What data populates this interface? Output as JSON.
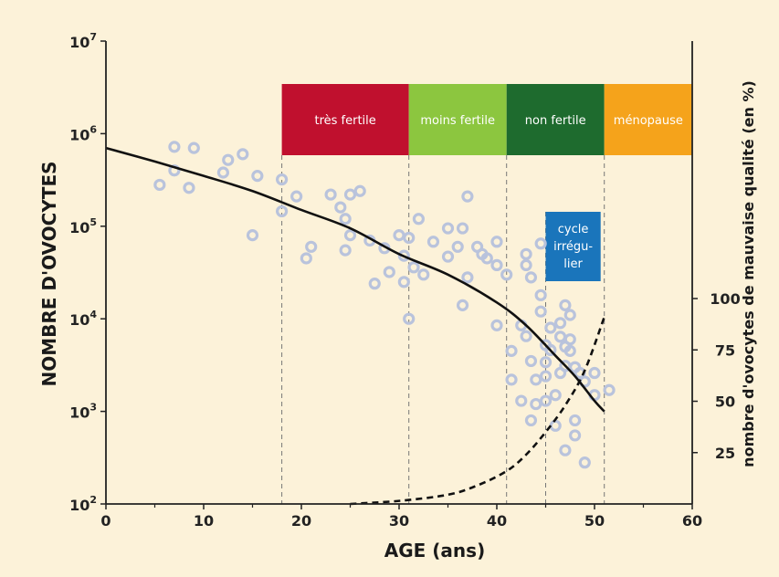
{
  "chart_data": {
    "type": "scatter",
    "xlabel": "AGE (ans)",
    "ylabel": "NOMBRE D'OVOCYTES",
    "y2label": "nombre d'ovocytes de mauvaise qualité (en %)",
    "xlim": [
      0,
      60
    ],
    "ylim": [
      100,
      10000000
    ],
    "yscale": "log",
    "x_ticks": [
      "0",
      "10",
      "20",
      "30",
      "40",
      "50",
      "60"
    ],
    "y_ticks": [
      {
        "base": "10",
        "exp": "2",
        "value": 100
      },
      {
        "base": "10",
        "exp": "3",
        "value": 1000
      },
      {
        "base": "10",
        "exp": "4",
        "value": 10000
      },
      {
        "base": "10",
        "exp": "5",
        "value": 100000
      },
      {
        "base": "10",
        "exp": "6",
        "value": 1000000
      },
      {
        "base": "10",
        "exp": "7",
        "value": 10000000
      }
    ],
    "y2_ticks": [
      "25",
      "50",
      "75",
      "100"
    ],
    "y2lim": [
      0,
      100
    ],
    "grid": false,
    "background": "#fcf2d9",
    "phases": [
      {
        "label": "très fertile",
        "from": 18,
        "to": 31,
        "color": "#c0102e"
      },
      {
        "label": "moins fertile",
        "from": 31,
        "to": 41,
        "color": "#8cc63f"
      },
      {
        "label": "non fertile",
        "from": 41,
        "to": 51,
        "color": "#1e6b2e"
      },
      {
        "label": "ménopause",
        "from": 51,
        "to": 60,
        "color": "#f5a31b"
      }
    ],
    "annotation": {
      "lines": [
        "cycle",
        "irrégu-",
        "lier"
      ],
      "x_from": 45,
      "x_to": 51,
      "color": "#1a75bb"
    },
    "series": [
      {
        "style": "solid-curve",
        "color": "#111111",
        "points": [
          [
            0,
            700000
          ],
          [
            5,
            500000
          ],
          [
            10,
            350000
          ],
          [
            15,
            240000
          ],
          [
            20,
            150000
          ],
          [
            25,
            95000
          ],
          [
            30,
            50000
          ],
          [
            35,
            30000
          ],
          [
            40,
            15000
          ],
          [
            43,
            8500
          ],
          [
            46,
            4000
          ],
          [
            48,
            2400
          ],
          [
            50,
            1300
          ],
          [
            51,
            1000
          ]
        ]
      },
      {
        "style": "dashed-curve",
        "axis": "y2",
        "color": "#111111",
        "points": [
          [
            25,
            0
          ],
          [
            30,
            1.5
          ],
          [
            35,
            4.5
          ],
          [
            38,
            9
          ],
          [
            41,
            16
          ],
          [
            43,
            24
          ],
          [
            45,
            35
          ],
          [
            47,
            48
          ],
          [
            49,
            65
          ],
          [
            51,
            91
          ]
        ]
      },
      {
        "style": "dots",
        "color": "#b9c3dc",
        "points": [
          [
            5.5,
            280000
          ],
          [
            7,
            400000
          ],
          [
            7,
            720000
          ],
          [
            8.5,
            260000
          ],
          [
            9,
            700000
          ],
          [
            12,
            380000
          ],
          [
            12.5,
            520000
          ],
          [
            14,
            600000
          ],
          [
            15,
            80000
          ],
          [
            15.5,
            350000
          ],
          [
            18,
            145000
          ],
          [
            18,
            320000
          ],
          [
            19.5,
            210000
          ],
          [
            20.5,
            45000
          ],
          [
            21,
            60000
          ],
          [
            23,
            220000
          ],
          [
            24,
            160000
          ],
          [
            24.5,
            120000
          ],
          [
            24.5,
            55000
          ],
          [
            25,
            80000
          ],
          [
            25,
            220000
          ],
          [
            26,
            240000
          ],
          [
            27,
            70000
          ],
          [
            27.5,
            24000
          ],
          [
            28.5,
            58000
          ],
          [
            29,
            32000
          ],
          [
            30,
            80000
          ],
          [
            30.5,
            25000
          ],
          [
            30.5,
            48000
          ],
          [
            31,
            75000
          ],
          [
            31,
            10000
          ],
          [
            31.5,
            36000
          ],
          [
            32,
            120000
          ],
          [
            32.5,
            30000
          ],
          [
            33.5,
            68000
          ],
          [
            35,
            95000
          ],
          [
            35,
            47000
          ],
          [
            36,
            60000
          ],
          [
            36.5,
            95000
          ],
          [
            36.5,
            14000
          ],
          [
            37,
            210000
          ],
          [
            37,
            28000
          ],
          [
            38,
            60000
          ],
          [
            38.5,
            50000
          ],
          [
            39,
            45000
          ],
          [
            40,
            38000
          ],
          [
            40,
            68000
          ],
          [
            40,
            8500
          ],
          [
            41,
            30000
          ],
          [
            41.5,
            4500
          ],
          [
            41.5,
            2200
          ],
          [
            42.5,
            8500
          ],
          [
            42.5,
            1300
          ],
          [
            43,
            6500
          ],
          [
            43,
            50000
          ],
          [
            43,
            38000
          ],
          [
            43.5,
            3500
          ],
          [
            43.5,
            28000
          ],
          [
            43.5,
            800
          ],
          [
            44,
            2200
          ],
          [
            44,
            1200
          ],
          [
            44.5,
            65000
          ],
          [
            44.5,
            18000
          ],
          [
            44.5,
            12000
          ],
          [
            45,
            5200
          ],
          [
            45,
            3400
          ],
          [
            45,
            2400
          ],
          [
            45,
            1300
          ],
          [
            45.5,
            8000
          ],
          [
            45.5,
            4600
          ],
          [
            46,
            1500
          ],
          [
            46,
            700
          ],
          [
            46.5,
            9000
          ],
          [
            46.5,
            6400
          ],
          [
            46.5,
            2600
          ],
          [
            47,
            14000
          ],
          [
            47,
            5000
          ],
          [
            47,
            3100
          ],
          [
            47,
            380
          ],
          [
            47.5,
            11000
          ],
          [
            47.5,
            6000
          ],
          [
            47.5,
            4500
          ],
          [
            48,
            3000
          ],
          [
            48,
            550
          ],
          [
            48,
            800
          ],
          [
            48.5,
            2600
          ],
          [
            49,
            2100
          ],
          [
            49,
            280
          ],
          [
            50,
            1500
          ],
          [
            50,
            2600
          ],
          [
            51.5,
            1700
          ]
        ]
      }
    ]
  }
}
